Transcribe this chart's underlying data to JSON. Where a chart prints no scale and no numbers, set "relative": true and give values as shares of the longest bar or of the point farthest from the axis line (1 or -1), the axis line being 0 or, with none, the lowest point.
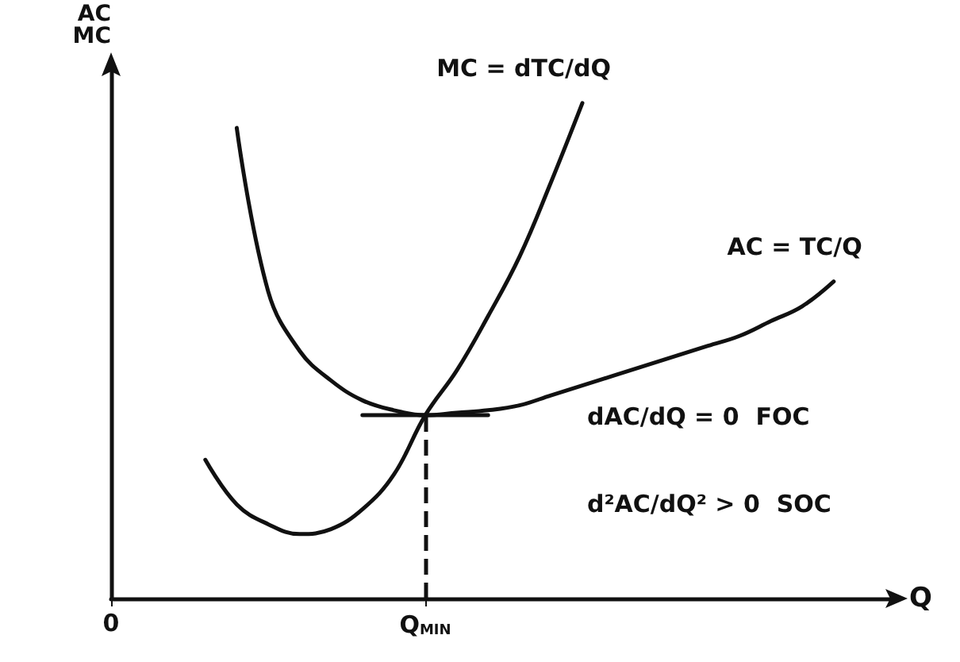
{
  "chart_data": {
    "type": "line",
    "relative": true,
    "xlabel": "Q",
    "ylabel": "AC\nMC",
    "categories": [
      "0",
      null,
      null,
      null,
      null,
      null,
      null,
      null,
      null,
      null,
      "Q$_{MIN}$",
      null,
      null,
      null,
      null,
      null,
      null,
      null,
      null,
      null,
      null,
      null,
      null,
      null,
      null,
      null
    ],
    "tick_labels": "x",
    "grid": false,
    "marker": "none",
    "line_style": "solid",
    "series": [
      {
        "name": "MC = dTC/dQ",
        "color": "#111111",
        "values": [
          null,
          null,
          null,
          0.28,
          0.19,
          0.15,
          0.13,
          0.14,
          0.18,
          0.25,
          0.37,
          0.46,
          0.57,
          0.69,
          0.84,
          1.0,
          null,
          null,
          null,
          null,
          null,
          null,
          null,
          null,
          null,
          null
        ]
      },
      {
        "name": "AC = TC/Q",
        "color": "#111111",
        "values": [
          null,
          null,
          null,
          null,
          0.95,
          0.62,
          0.5,
          0.44,
          0.4,
          0.38,
          0.37,
          0.375,
          0.38,
          0.39,
          0.41,
          0.43,
          0.45,
          0.47,
          0.49,
          0.51,
          0.53,
          0.56,
          0.59,
          0.64,
          null,
          null
        ]
      },
      {
        "color": "#111111",
        "values": [
          null,
          null,
          null,
          null,
          null,
          null,
          null,
          null,
          0.37,
          0.37,
          0.37,
          0.37,
          0.37,
          null,
          null,
          null,
          null,
          null,
          null,
          null,
          null,
          null,
          null,
          null,
          null,
          null
        ]
      }
    ],
    "ref_lines": [
      {
        "axis": "x",
        "value": "Q$_{MIN}$",
        "color": "#111111",
        "line_style": "dashed"
      }
    ],
    "annotations": [
      "dAC/dQ = 0  FOC",
      "d²AC/dQ² > 0  SOC"
    ]
  }
}
